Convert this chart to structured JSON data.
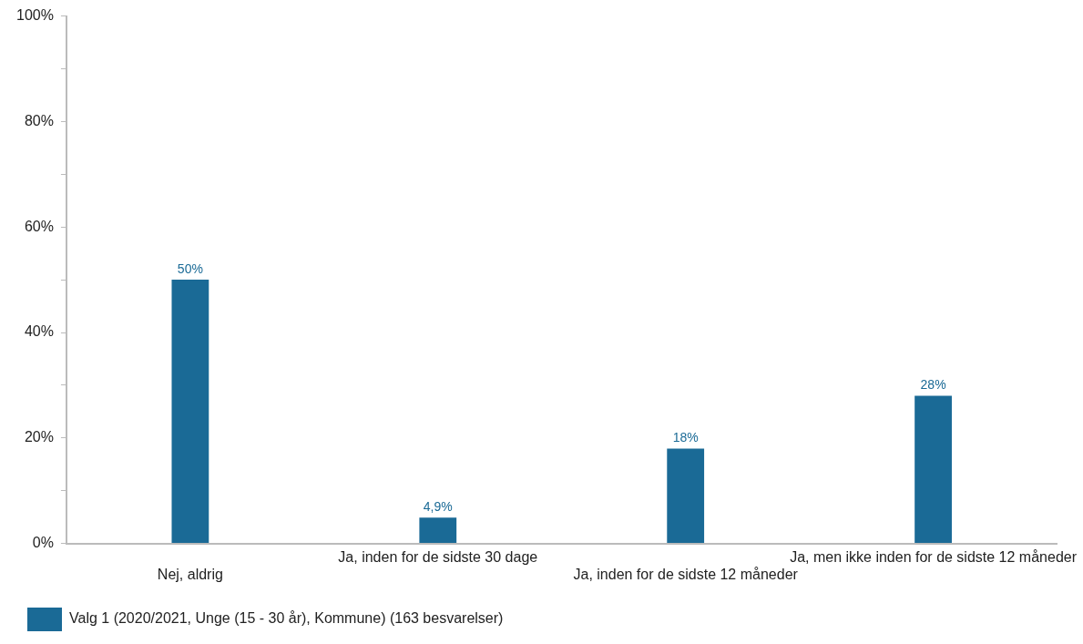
{
  "chart_data": {
    "type": "bar",
    "categories": [
      "Nej, aldrig",
      "Ja, inden for de sidste 30 dage",
      "Ja, inden for de sidste 12 måneder",
      "Ja, men ikke inden for de sidste 12 måneder"
    ],
    "series": [
      {
        "name": "Valg 1 (2020/2021, Unge (15 - 30 år), Kommune) (163 besvarelser)",
        "color": "#1a6a96",
        "values": [
          50,
          4.9,
          18,
          28
        ],
        "value_labels": [
          "50%",
          "4,9%",
          "18%",
          "28%"
        ]
      }
    ],
    "ylim": [
      0,
      100
    ],
    "yticks": [
      {
        "value": 0,
        "label": "0%"
      },
      {
        "value": 10,
        "label": null
      },
      {
        "value": 20,
        "label": "20%"
      },
      {
        "value": 30,
        "label": null
      },
      {
        "value": 40,
        "label": "40%"
      },
      {
        "value": 50,
        "label": null
      },
      {
        "value": 60,
        "label": "60%"
      },
      {
        "value": 70,
        "label": null
      },
      {
        "value": 80,
        "label": "80%"
      },
      {
        "value": 90,
        "label": null
      },
      {
        "value": 100,
        "label": "100%"
      }
    ],
    "grid": false,
    "legend": "bottom left"
  }
}
